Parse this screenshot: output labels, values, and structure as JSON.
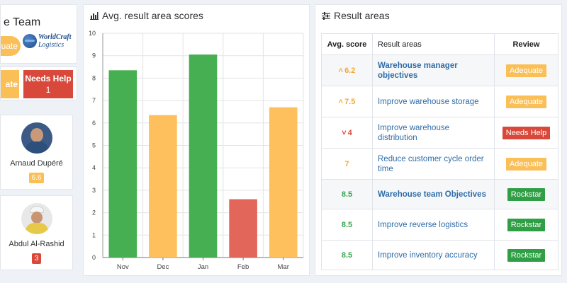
{
  "team": {
    "title": "e Team",
    "pill_label": "uate",
    "logo_line1": "WorldCraft",
    "logo_line2": "Logistics"
  },
  "status": {
    "adequate_label": "ate",
    "needs_help_label": "Needs Help",
    "needs_help_count": "1"
  },
  "people": [
    {
      "name": "Arnaud Dupéré",
      "score": "6.6"
    },
    {
      "name": "Abdul Al-Rashid",
      "score": "3"
    }
  ],
  "chart_panel": {
    "title": "Avg. result area scores"
  },
  "chart_data": {
    "type": "bar",
    "categories": [
      "Nov",
      "Dec",
      "Jan",
      "Feb",
      "Mar"
    ],
    "values": [
      8.35,
      6.35,
      9.05,
      2.6,
      6.7
    ],
    "colors": [
      "#46af51",
      "#fec05d",
      "#46af51",
      "#e2675a",
      "#fec05d"
    ],
    "title": "Avg. result area scores",
    "xlabel": "",
    "ylabel": "",
    "ylim": [
      0,
      10
    ],
    "yticks": [
      0,
      1,
      2,
      3,
      4,
      5,
      6,
      7,
      8,
      9,
      10
    ],
    "grid": true,
    "legend": "none"
  },
  "table_panel": {
    "title": "Result areas",
    "headers": {
      "score": "Avg. score",
      "area": "Result areas",
      "review": "Review"
    },
    "rows": [
      {
        "score": "6.2",
        "arrow": "up",
        "area": "Warehouse manager objectives",
        "review": "Adequate",
        "kind": "objective"
      },
      {
        "score": "7.5",
        "arrow": "up",
        "area": "Improve warehouse storage",
        "review": "Adequate",
        "kind": "item"
      },
      {
        "score": "4",
        "arrow": "down",
        "area": "Improve warehouse distribution",
        "review": "Needs Help",
        "kind": "item"
      },
      {
        "score": "7",
        "arrow": "",
        "area": "Reduce customer cycle order time",
        "review": "Adequate",
        "kind": "item"
      },
      {
        "score": "8.5",
        "arrow": "",
        "area": "Warehouse team Objectives",
        "review": "Rockstar",
        "kind": "objective"
      },
      {
        "score": "8.5",
        "arrow": "",
        "area": "Improve reverse logistics",
        "review": "Rockstar",
        "kind": "item"
      },
      {
        "score": "8.5",
        "arrow": "",
        "area": "Improve inventory accuracy",
        "review": "Rockstar",
        "kind": "item"
      }
    ]
  },
  "review_colors": {
    "Adequate": "#fbbf58",
    "Needs Help": "#d9493b",
    "Rockstar": "#2f9e44"
  },
  "icons": {
    "chart_title": "bar-chart-icon",
    "table_title": "sliders-icon",
    "arrow_up": "double-chevron-up-icon",
    "arrow_down": "double-chevron-down-icon"
  }
}
